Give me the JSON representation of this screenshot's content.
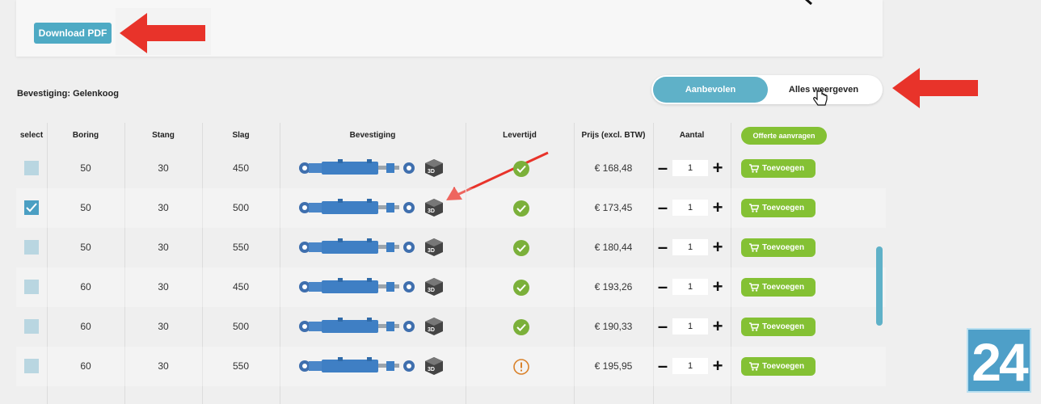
{
  "toolbar": {
    "download_pdf_label": "Download PDF"
  },
  "filter": {
    "label": "Bevestiging: Gelenkoog",
    "toggle_options": [
      "Aanbevolen",
      "Alles weergeven"
    ],
    "active_option": "Aanbevolen"
  },
  "table": {
    "headers": {
      "select": "select",
      "boring": "Boring",
      "stang": "Stang",
      "slag": "Slag",
      "bevestiging": "Bevestiging",
      "levertijd": "Levertijd",
      "prijs": "Prijs (excl. BTW)",
      "aantal": "Aantal"
    },
    "offerte_label": "Offerte aanvragen",
    "add_label": "Toevoegen",
    "rows": [
      {
        "selected": false,
        "boring": "50",
        "stang": "30",
        "slag": "450",
        "levertijd": "ok",
        "prijs": "€ 168,48",
        "aantal": "1"
      },
      {
        "selected": true,
        "boring": "50",
        "stang": "30",
        "slag": "500",
        "levertijd": "ok",
        "prijs": "€ 173,45",
        "aantal": "1"
      },
      {
        "selected": false,
        "boring": "50",
        "stang": "30",
        "slag": "550",
        "levertijd": "ok",
        "prijs": "€ 180,44",
        "aantal": "1"
      },
      {
        "selected": false,
        "boring": "60",
        "stang": "30",
        "slag": "450",
        "levertijd": "ok",
        "prijs": "€ 193,26",
        "aantal": "1"
      },
      {
        "selected": false,
        "boring": "60",
        "stang": "30",
        "slag": "500",
        "levertijd": "ok",
        "prijs": "€ 190,33",
        "aantal": "1"
      },
      {
        "selected": false,
        "boring": "60",
        "stang": "30",
        "slag": "550",
        "levertijd": "warning",
        "prijs": "€ 195,95",
        "aantal": "1"
      }
    ]
  },
  "overlay": {
    "badge_text": "24"
  },
  "colors": {
    "accent": "#5fb1c8",
    "green": "#84c134",
    "annotation_red": "#e8332a",
    "warning": "#d9822b"
  },
  "icons": [
    "back-arrow-icon",
    "cart-icon",
    "check-icon",
    "warning-icon",
    "3d-step-icon",
    "hand-cursor-icon"
  ]
}
